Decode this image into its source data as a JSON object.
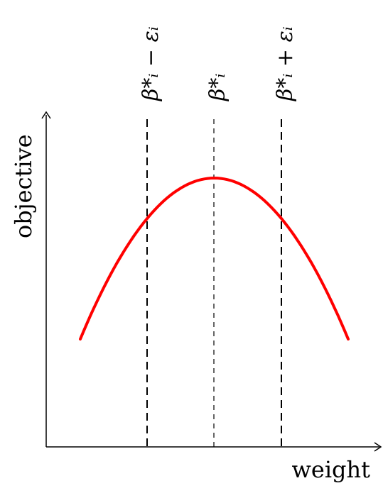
{
  "diagram": {
    "x_axis_label": "weight",
    "y_axis_label": "objective",
    "curve_color": "#ff0000",
    "markers": [
      {
        "label": "β*ᵢ − εᵢ",
        "dash": "long"
      },
      {
        "label": "β*ᵢ",
        "dash": "short"
      },
      {
        "label": "β*ᵢ + εᵢ",
        "dash": "long"
      }
    ]
  }
}
